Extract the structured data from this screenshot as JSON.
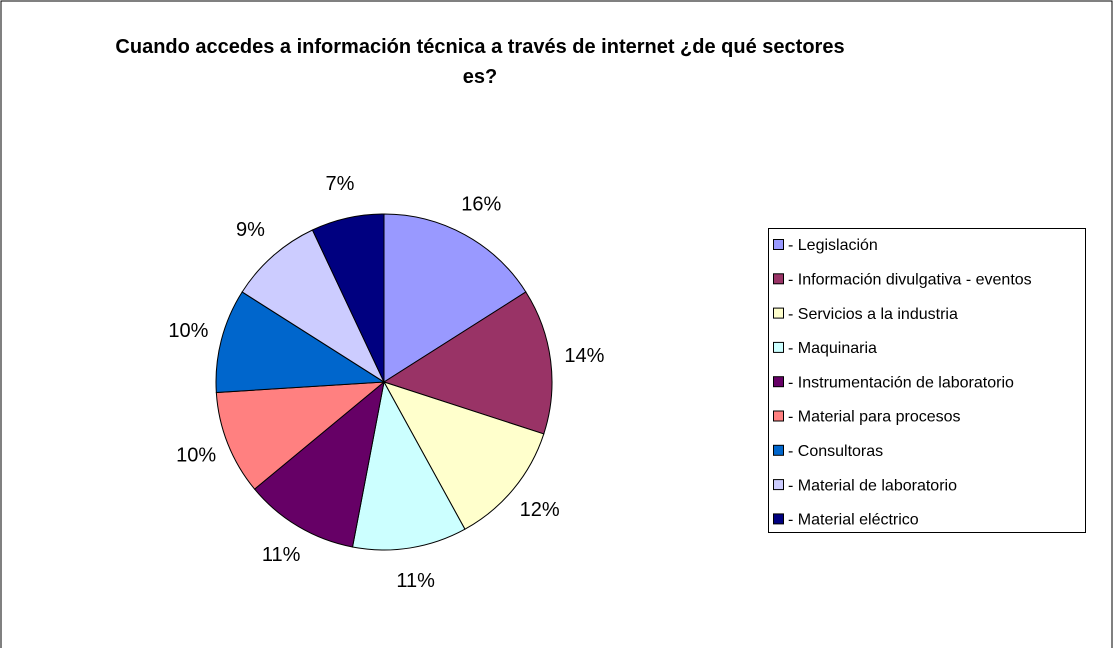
{
  "chart_data": {
    "type": "pie",
    "title": "Cuando accedes a información técnica a través de internet ¿de qué sectores es?",
    "categories": [
      "- Legislación",
      "- Información divulgativa - eventos",
      "- Servicios a la industria",
      "- Maquinaria",
      "- Instrumentación de laboratorio",
      "- Material para procesos",
      "- Consultoras",
      "- Material de laboratorio",
      "- Material eléctrico"
    ],
    "values": [
      16,
      14,
      12,
      11,
      11,
      10,
      10,
      9,
      7
    ],
    "value_labels": [
      "16%",
      "14%",
      "12%",
      "11%",
      "11%",
      "10%",
      "10%",
      "9%",
      "7%"
    ],
    "colors": [
      "#9999ff",
      "#993366",
      "#ffffcc",
      "#ccffff",
      "#660066",
      "#ff8080",
      "#0066cc",
      "#ccccff",
      "#000080"
    ],
    "legend": "right"
  }
}
